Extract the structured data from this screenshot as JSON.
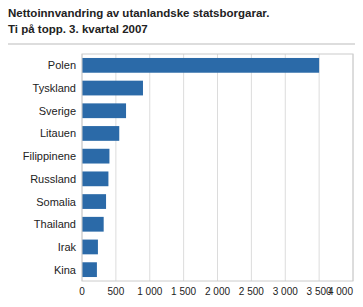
{
  "chart_data": {
    "type": "bar",
    "orientation": "horizontal",
    "title": "Nettoinnvandring av utanlandske statsborgarar.",
    "subtitle": "Ti på topp. 3. kvartal  2007",
    "categories": [
      "Kina",
      "Irak",
      "Thailand",
      "Somalia",
      "Russland",
      "Filippinene",
      "Litauen",
      "Sverige",
      "Tyskland",
      "Polen"
    ],
    "values": [
      220,
      235,
      320,
      355,
      390,
      405,
      550,
      650,
      900,
      3500
    ],
    "color": "#2B6AA8",
    "xlim": [
      0,
      4000
    ],
    "xticks": [
      0,
      500,
      {
        "value": 1000,
        "label": "1 000"
      },
      {
        "value": 1500,
        "label": "1 500"
      },
      {
        "value": 2000,
        "label": "2 000"
      },
      {
        "value": 2500,
        "label": "2 500"
      },
      {
        "value": 3000,
        "label": "3 000"
      },
      {
        "value": 3500,
        "label": "3 500"
      },
      {
        "value": 4000,
        "label": "4 000"
      }
    ],
    "grid": true
  }
}
